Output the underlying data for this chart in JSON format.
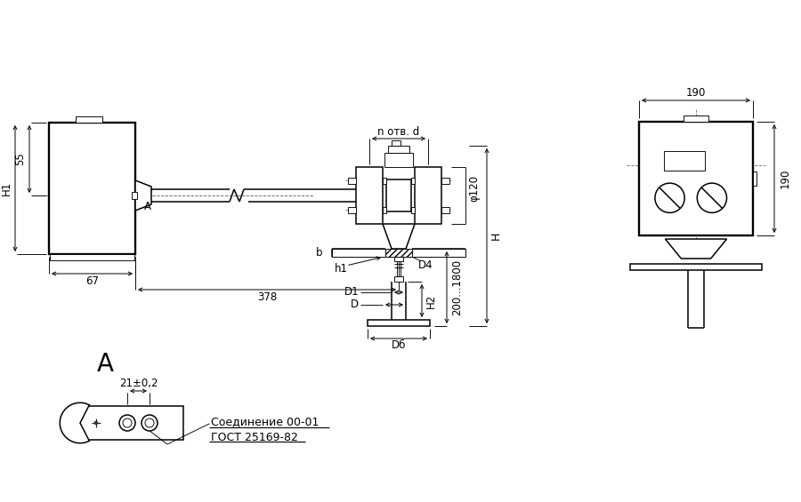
{
  "bg": "#ffffff",
  "lc": "#000000",
  "ann": {
    "190t": "190",
    "190r": "190",
    "55": "55",
    "H1": "H1",
    "67": "67",
    "378": "378",
    "phi120": "φ120",
    "H": "H",
    "n_otv_d": "n отв. d",
    "b": "b",
    "h1": "h1",
    "D4": "D4",
    "D1": "D1",
    "D": "D",
    "H2": "H2",
    "200_1800": "200...1800",
    "D6": "Dб",
    "A": "A",
    "21": "21±0,2",
    "note1": "Соединение 00-01",
    "note2": "ГОСТ 25169-82"
  }
}
